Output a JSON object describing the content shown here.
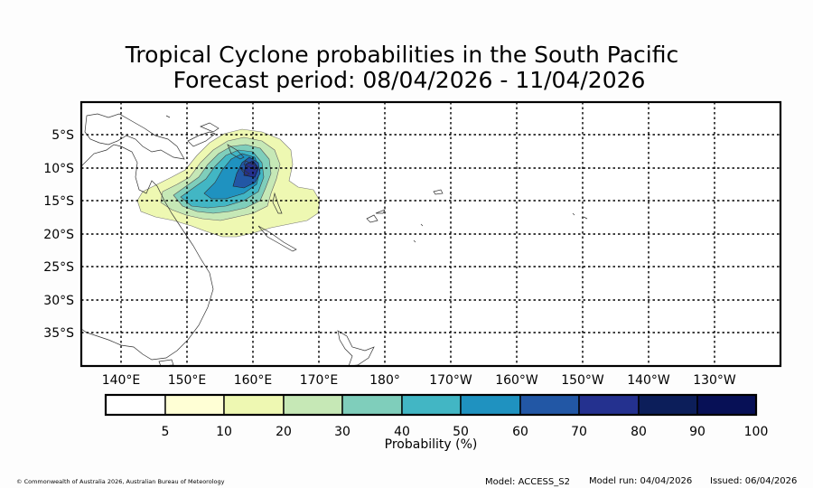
{
  "title": {
    "line1": "Tropical Cyclone probabilities in the South Pacific",
    "line2": "Forecast period: 08/04/2026 - 11/04/2026"
  },
  "map": {
    "lat_labels": [
      "5°S",
      "10°S",
      "15°S",
      "20°S",
      "25°S",
      "30°S",
      "35°S"
    ],
    "lon_labels": [
      "140°E",
      "150°E",
      "160°E",
      "170°E",
      "180°",
      "170°W",
      "160°W",
      "150°W",
      "140°W",
      "130°W"
    ]
  },
  "colorbar": {
    "label": "Probability (%)",
    "levels": [
      "5",
      "10",
      "20",
      "30",
      "40",
      "50",
      "60",
      "70",
      "80",
      "90",
      "100"
    ],
    "colors": [
      "#ffffff",
      "#ffffd5",
      "#eef8b2",
      "#c6e8b6",
      "#7fcebb",
      "#42b6c4",
      "#1f92c0",
      "#2257a5",
      "#24318f",
      "#0c1e5a",
      "#071056"
    ]
  },
  "footer": {
    "copyright": "© Commonwealth of Australia 2026, Australian Bureau of Meteorology",
    "model": "Model: ACCESS_S2",
    "model_run": "Model run: 04/04/2026",
    "issued": "Issued: 06/04/2026"
  }
}
